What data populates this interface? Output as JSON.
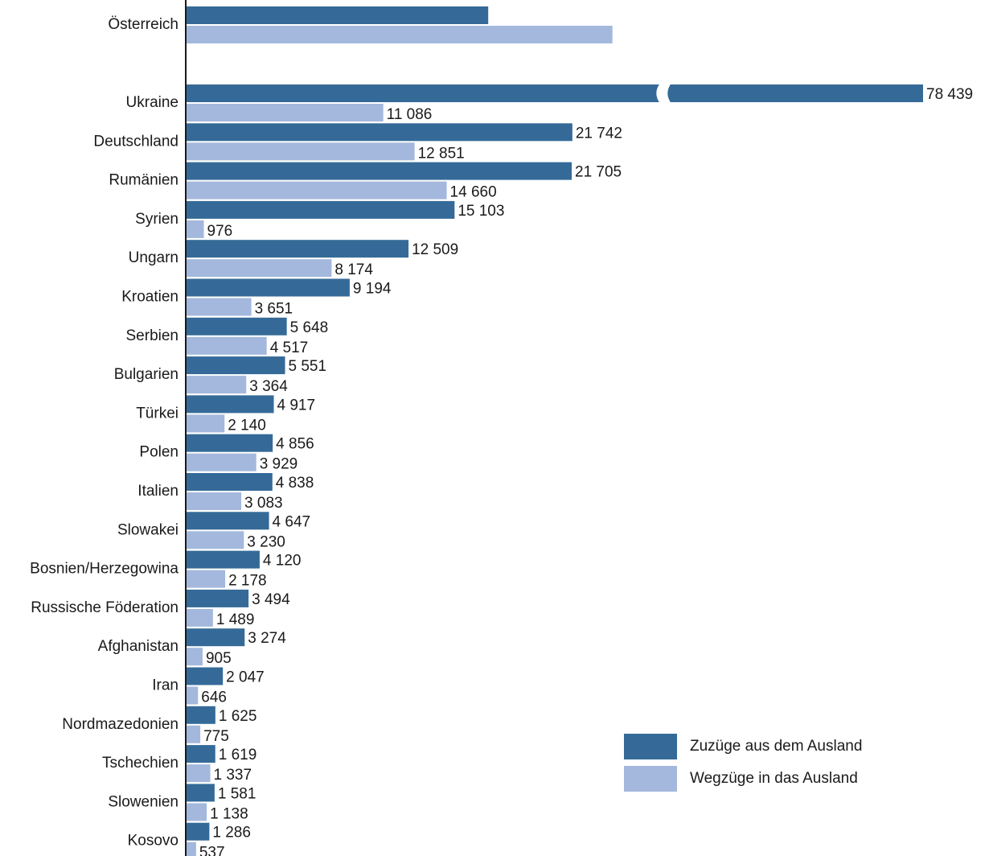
{
  "chart_data": {
    "type": "bar",
    "orientation": "horizontal",
    "categories": [
      "Österreich",
      "Ukraine",
      "Deutschland",
      "Rumänien",
      "Syrien",
      "Ungarn",
      "Kroatien",
      "Serbien",
      "Bulgarien",
      "Türkei",
      "Polen",
      "Italien",
      "Slowakei",
      "Bosnien/Herzegowina",
      "Russische Föderation",
      "Afghanistan",
      "Iran",
      "Nordmazedonien",
      "Tschechien",
      "Slowenien",
      "Kosovo"
    ],
    "series": [
      {
        "name": "Zuzüge aus dem Ausland",
        "color": "#356a98",
        "values": [
          17000,
          78439,
          21742,
          21705,
          15103,
          12509,
          9194,
          5648,
          5551,
          4917,
          4856,
          4838,
          4647,
          4120,
          3494,
          3274,
          2047,
          1625,
          1619,
          1581,
          1286
        ],
        "labels": [
          "",
          "78 439",
          "21 742",
          "21 705",
          "15 103",
          "12 509",
          "9 194",
          "5 648",
          "5 551",
          "4 917",
          "4 856",
          "4 838",
          "4 647",
          "4 120",
          "3 494",
          "3 274",
          "2 047",
          "1 625",
          "1 619",
          "1 581",
          "1 286"
        ]
      },
      {
        "name": "Wegzüge in das Ausland",
        "color": "#a3b8dc",
        "values": [
          24000,
          11086,
          12851,
          14660,
          976,
          8174,
          3651,
          4517,
          3364,
          2140,
          3929,
          3083,
          3230,
          2178,
          1489,
          905,
          646,
          775,
          1337,
          1138,
          537
        ],
        "labels": [
          "",
          "11 086",
          "12 851",
          "14 660",
          "976",
          "8 174",
          "3 651",
          "4 517",
          "3 364",
          "2 140",
          "3 929",
          "3 083",
          "3 230",
          "2 178",
          "1 489",
          "905",
          "646",
          "775",
          "1 337",
          "1 138",
          "537"
        ]
      }
    ],
    "axis_break": {
      "from": 26000,
      "to": 69000
    },
    "xlim": [
      0,
      78439
    ],
    "legend_position": "bottom-right"
  }
}
